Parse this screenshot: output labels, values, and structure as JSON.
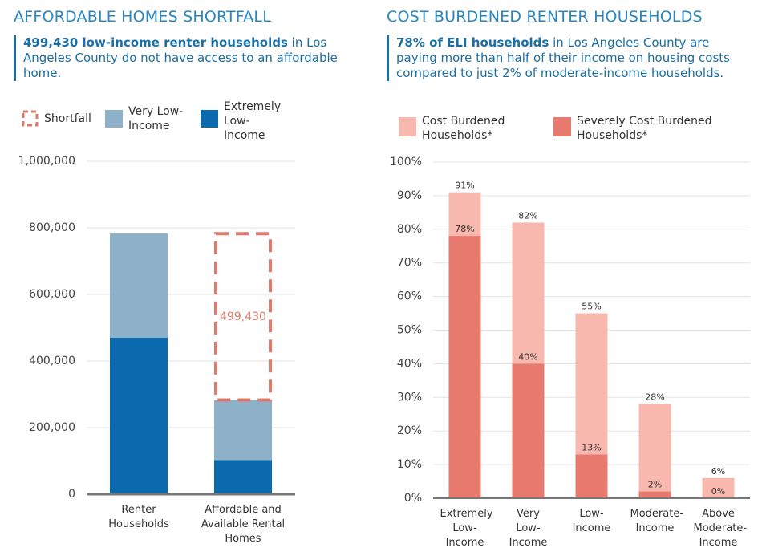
{
  "chart_data": [
    {
      "type": "bar",
      "mode": "stacked",
      "title": "AFFORDABLE HOMES SHORTFALL",
      "subtitle_bold": "499,430 low-income renter households",
      "subtitle": " in Los Angeles County do not have access to an affordable home.",
      "categories": [
        "Renter Households",
        "Affordable and Available Rental Homes"
      ],
      "series": [
        {
          "name": "Shortfall",
          "color": "#e07a6c",
          "style": "dashed",
          "values": [
            null,
            499430
          ],
          "value_labels": [
            null,
            "499,430"
          ]
        },
        {
          "name": "Very Low-Income",
          "color": "#8cb1c8",
          "values": [
            313000,
            180000
          ]
        },
        {
          "name": "Extremely Low-Income",
          "color": "#0a6aad",
          "values": [
            470000,
            103000
          ]
        }
      ],
      "ylim": [
        0,
        1000000
      ],
      "yticks": [
        0,
        {
          "value": 200000,
          "label": "200,000"
        },
        {
          "value": 400000,
          "label": "400,000"
        },
        {
          "value": 600000,
          "label": "600,000"
        },
        {
          "value": 800000,
          "label": "800,000"
        },
        {
          "value": 1000000,
          "label": "1,000,000"
        }
      ],
      "grid": true
    },
    {
      "type": "bar",
      "mode": "overlay",
      "title": "COST BURDENED RENTER HOUSEHOLDS",
      "subtitle_bold": "78% of ELI households",
      "subtitle": " in Los Angeles County are paying more than half of their income on housing costs compared to just 2% of moderate-income households.",
      "categories": [
        "Extremely Low-Income",
        "Very Low-Income",
        "Low-Income",
        "Moderate-Income",
        "Above Moderate-Income"
      ],
      "series": [
        {
          "name": "Cost Burdened Households*",
          "color": "#f9b8ae",
          "values": [
            91,
            82,
            55,
            28,
            6
          ],
          "value_labels": [
            "91%",
            "82%",
            "55%",
            "28%",
            "6%"
          ]
        },
        {
          "name": "Severely Cost Burdened Households*",
          "color": "#e8796f",
          "values": [
            78,
            40,
            13,
            2,
            0
          ],
          "value_labels": [
            "78%",
            "40%",
            "13%",
            "2%",
            "0%"
          ]
        }
      ],
      "ylim": [
        0,
        100
      ],
      "yticks": [
        {
          "value": 0,
          "label": "0%"
        },
        {
          "value": 10,
          "label": "10%"
        },
        {
          "value": 20,
          "label": "20%"
        },
        {
          "value": 30,
          "label": "30%"
        },
        {
          "value": 40,
          "label": "40%"
        },
        {
          "value": 50,
          "label": "50%"
        },
        {
          "value": 60,
          "label": "60%"
        },
        {
          "value": 70,
          "label": "70%"
        },
        {
          "value": 80,
          "label": "80%"
        },
        {
          "value": 90,
          "label": "90%"
        },
        {
          "value": 100,
          "label": "100%"
        }
      ],
      "grid": true
    }
  ]
}
